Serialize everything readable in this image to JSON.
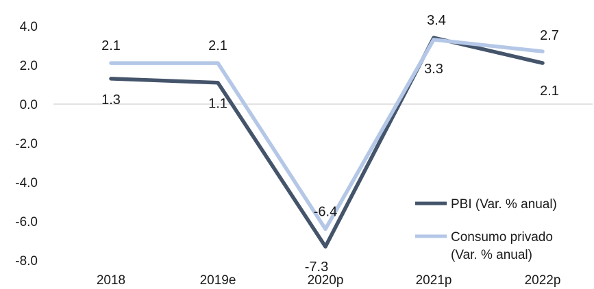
{
  "chart_data": {
    "type": "line",
    "categories": [
      "2018",
      "2019e",
      "2020p",
      "2021p",
      "2022p"
    ],
    "ylim": [
      -8.0,
      4.0
    ],
    "yticks": [
      "4.0",
      "2.0",
      "0.0",
      "-2.0",
      "-4.0",
      "-6.0",
      "-8.0"
    ],
    "grid": false,
    "legend_position": "bottom-right",
    "series": [
      {
        "name": "PBI (Var. % anual)",
        "color": "#44546a",
        "values": [
          1.3,
          1.1,
          -7.3,
          3.4,
          2.1
        ],
        "labels": [
          "1.3",
          "1.1",
          "-7.3",
          "3.4",
          "2.1"
        ]
      },
      {
        "name_lines": [
          "Consumo privado",
          "(Var. % anual)"
        ],
        "color": "#b4c7e7",
        "values": [
          2.1,
          2.1,
          -6.4,
          3.3,
          2.7
        ],
        "labels": [
          "2.1",
          "2.1",
          "-6.4",
          "3.3",
          "2.7"
        ]
      }
    ]
  }
}
